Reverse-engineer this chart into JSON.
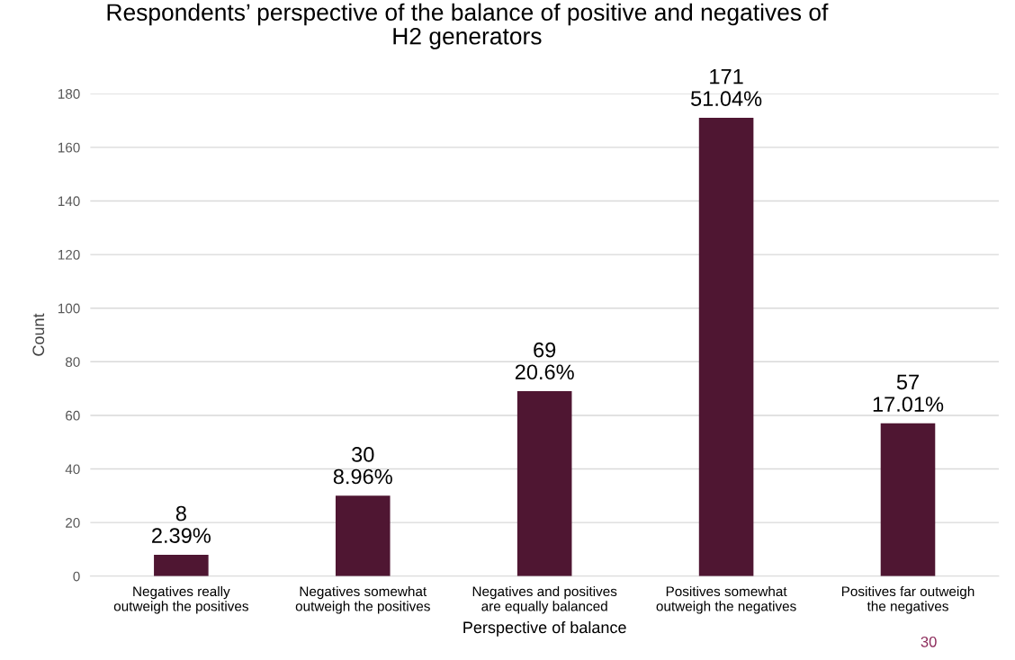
{
  "chart_data": {
    "type": "bar",
    "title": "Respondents’ perspective of the balance of positive and negatives of\nH2 generators",
    "xlabel": "Perspective of balance",
    "ylabel": "Count",
    "categories": [
      "Negatives really\noutweigh the positives",
      "Negatives somewhat\noutweigh the positives",
      "Negatives and positives\nare equally balanced",
      "Positives somewhat\noutweigh the negatives",
      "Positives far outweigh\nthe negatives"
    ],
    "values": [
      8,
      30,
      69,
      171,
      57
    ],
    "value_labels": [
      "8\n2.39%",
      "30\n8.96%",
      "69\n20.6%",
      "171\n51.04%",
      "57\n17.01%"
    ],
    "color": "#4f1632",
    "ylim": [
      0,
      180
    ],
    "yticks": [
      0,
      20,
      40,
      60,
      80,
      100,
      120,
      140,
      160,
      180
    ],
    "grid": "y",
    "annotations": [
      "30"
    ]
  }
}
